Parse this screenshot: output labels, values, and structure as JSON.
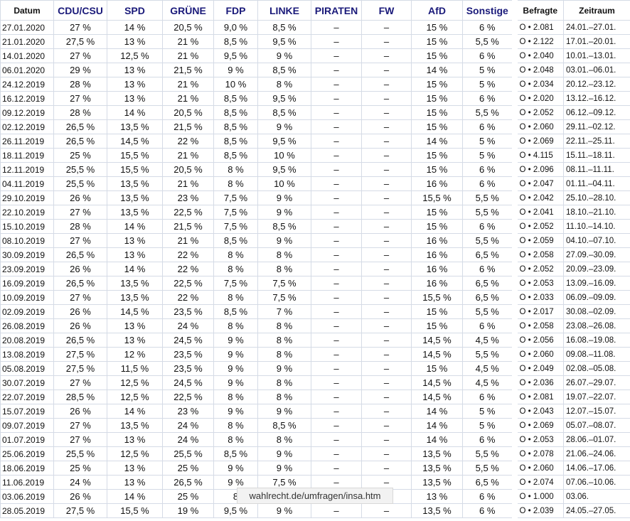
{
  "table": {
    "headers": [
      "Datum",
      "CDU/CSU",
      "SPD",
      "GRÜNE",
      "FDP",
      "LINKE",
      "PIRATEN",
      "FW",
      "AfD",
      "Sonstige",
      "Befragte",
      "Zeitraum"
    ],
    "rows": [
      [
        "27.01.2020",
        "27 %",
        "14 %",
        "20,5 %",
        "9,0 %",
        "8,5 %",
        "–",
        "–",
        "15 %",
        "6 %",
        "O • 2.081",
        "24.01.–27.01."
      ],
      [
        "21.01.2020",
        "27,5 %",
        "13 %",
        "21 %",
        "8,5 %",
        "9,5 %",
        "–",
        "–",
        "15 %",
        "5,5 %",
        "O • 2.122",
        "17.01.–20.01."
      ],
      [
        "14.01.2020",
        "27 %",
        "12,5 %",
        "21 %",
        "9,5 %",
        "9 %",
        "–",
        "–",
        "15 %",
        "6 %",
        "O • 2.040",
        "10.01.–13.01."
      ],
      [
        "06.01.2020",
        "29 %",
        "13 %",
        "21,5 %",
        "9 %",
        "8,5 %",
        "–",
        "–",
        "14 %",
        "5 %",
        "O • 2.048",
        "03.01.–06.01."
      ],
      [
        "24.12.2019",
        "28 %",
        "13 %",
        "21 %",
        "10 %",
        "8 %",
        "–",
        "–",
        "15 %",
        "5 %",
        "O • 2.034",
        "20.12.–23.12."
      ],
      [
        "16.12.2019",
        "27 %",
        "13 %",
        "21 %",
        "8,5 %",
        "9,5 %",
        "–",
        "–",
        "15 %",
        "6 %",
        "O • 2.020",
        "13.12.–16.12."
      ],
      [
        "09.12.2019",
        "28 %",
        "14 %",
        "20,5 %",
        "8,5 %",
        "8,5 %",
        "–",
        "–",
        "15 %",
        "5,5 %",
        "O • 2.052",
        "06.12.–09.12."
      ],
      [
        "02.12.2019",
        "26,5 %",
        "13,5 %",
        "21,5 %",
        "8,5 %",
        "9 %",
        "–",
        "–",
        "15 %",
        "6 %",
        "O • 2.060",
        "29.11.–02.12."
      ],
      [
        "26.11.2019",
        "26,5 %",
        "14,5 %",
        "22 %",
        "8,5 %",
        "9,5 %",
        "–",
        "–",
        "14 %",
        "5 %",
        "O • 2.069",
        "22.11.–25.11."
      ],
      [
        "18.11.2019",
        "25 %",
        "15,5 %",
        "21 %",
        "8,5 %",
        "10 %",
        "–",
        "–",
        "15 %",
        "5 %",
        "O • 4.115",
        "15.11.–18.11."
      ],
      [
        "12.11.2019",
        "25,5 %",
        "15,5 %",
        "20,5 %",
        "8 %",
        "9,5 %",
        "–",
        "–",
        "15 %",
        "6 %",
        "O • 2.096",
        "08.11.–11.11."
      ],
      [
        "04.11.2019",
        "25,5 %",
        "13,5 %",
        "21 %",
        "8 %",
        "10 %",
        "–",
        "–",
        "16 %",
        "6 %",
        "O • 2.047",
        "01.11.–04.11."
      ],
      [
        "29.10.2019",
        "26 %",
        "13,5 %",
        "23 %",
        "7,5 %",
        "9 %",
        "–",
        "–",
        "15,5 %",
        "5,5 %",
        "O • 2.042",
        "25.10.–28.10."
      ],
      [
        "22.10.2019",
        "27 %",
        "13,5 %",
        "22,5 %",
        "7,5 %",
        "9 %",
        "–",
        "–",
        "15 %",
        "5,5 %",
        "O • 2.041",
        "18.10.–21.10."
      ],
      [
        "15.10.2019",
        "28 %",
        "14 %",
        "21,5 %",
        "7,5 %",
        "8,5 %",
        "–",
        "–",
        "15 %",
        "6 %",
        "O • 2.052",
        "11.10.–14.10."
      ],
      [
        "08.10.2019",
        "27 %",
        "13 %",
        "21 %",
        "8,5 %",
        "9 %",
        "–",
        "–",
        "16 %",
        "5,5 %",
        "O • 2.059",
        "04.10.–07.10."
      ],
      [
        "30.09.2019",
        "26,5 %",
        "13 %",
        "22 %",
        "8 %",
        "8 %",
        "–",
        "–",
        "16 %",
        "6,5 %",
        "O • 2.058",
        "27.09.–30.09."
      ],
      [
        "23.09.2019",
        "26 %",
        "14 %",
        "22 %",
        "8 %",
        "8 %",
        "–",
        "–",
        "16 %",
        "6 %",
        "O • 2.052",
        "20.09.–23.09."
      ],
      [
        "16.09.2019",
        "26,5 %",
        "13,5 %",
        "22,5 %",
        "7,5 %",
        "7,5 %",
        "–",
        "–",
        "16 %",
        "6,5 %",
        "O • 2.053",
        "13.09.–16.09."
      ],
      [
        "10.09.2019",
        "27 %",
        "13,5 %",
        "22 %",
        "8 %",
        "7,5 %",
        "–",
        "–",
        "15,5 %",
        "6,5 %",
        "O • 2.033",
        "06.09.–09.09."
      ],
      [
        "02.09.2019",
        "26 %",
        "14,5 %",
        "23,5 %",
        "8,5 %",
        "7 %",
        "–",
        "–",
        "15 %",
        "5,5 %",
        "O • 2.017",
        "30.08.–02.09."
      ],
      [
        "26.08.2019",
        "26 %",
        "13 %",
        "24 %",
        "8 %",
        "8 %",
        "–",
        "–",
        "15 %",
        "6 %",
        "O • 2.058",
        "23.08.–26.08."
      ],
      [
        "20.08.2019",
        "26,5 %",
        "13 %",
        "24,5 %",
        "9 %",
        "8 %",
        "–",
        "–",
        "14,5 %",
        "4,5 %",
        "O • 2.056",
        "16.08.–19.08."
      ],
      [
        "13.08.2019",
        "27,5 %",
        "12 %",
        "23,5 %",
        "9 %",
        "8 %",
        "–",
        "–",
        "14,5 %",
        "5,5 %",
        "O • 2.060",
        "09.08.–11.08."
      ],
      [
        "05.08.2019",
        "27,5 %",
        "11,5 %",
        "23,5 %",
        "9 %",
        "9 %",
        "–",
        "–",
        "15 %",
        "4,5 %",
        "O • 2.049",
        "02.08.–05.08."
      ],
      [
        "30.07.2019",
        "27 %",
        "12,5 %",
        "24,5 %",
        "9 %",
        "8 %",
        "–",
        "–",
        "14,5 %",
        "4,5 %",
        "O • 2.036",
        "26.07.–29.07."
      ],
      [
        "22.07.2019",
        "28,5 %",
        "12,5 %",
        "22,5 %",
        "8 %",
        "8 %",
        "–",
        "–",
        "14,5 %",
        "6 %",
        "O • 2.081",
        "19.07.–22.07."
      ],
      [
        "15.07.2019",
        "26 %",
        "14 %",
        "23 %",
        "9 %",
        "9 %",
        "–",
        "–",
        "14 %",
        "5 %",
        "O • 2.043",
        "12.07.–15.07."
      ],
      [
        "09.07.2019",
        "27 %",
        "13,5 %",
        "24 %",
        "8 %",
        "8,5 %",
        "–",
        "–",
        "14 %",
        "5 %",
        "O • 2.069",
        "05.07.–08.07."
      ],
      [
        "01.07.2019",
        "27 %",
        "13 %",
        "24 %",
        "8 %",
        "8 %",
        "–",
        "–",
        "14 %",
        "6 %",
        "O • 2.053",
        "28.06.–01.07."
      ],
      [
        "25.06.2019",
        "25,5 %",
        "12,5 %",
        "25,5 %",
        "8,5 %",
        "9 %",
        "–",
        "–",
        "13,5 %",
        "5,5 %",
        "O • 2.078",
        "21.06.–24.06."
      ],
      [
        "18.06.2019",
        "25 %",
        "13 %",
        "25 %",
        "9 %",
        "9 %",
        "–",
        "–",
        "13,5 %",
        "5,5 %",
        "O • 2.060",
        "14.06.–17.06."
      ],
      [
        "11.06.2019",
        "24 %",
        "13 %",
        "26,5 %",
        "9 %",
        "7,5 %",
        "–",
        "–",
        "13,5 %",
        "6,5 %",
        "O • 2.074",
        "07.06.–10.06."
      ],
      [
        "03.06.2019",
        "26 %",
        "14 %",
        "25 %",
        "8",
        null,
        null,
        null,
        "13 %",
        "6 %",
        "O • 1.000",
        "03.06."
      ],
      [
        "28.05.2019",
        "27,5 %",
        "15,5 %",
        "19 %",
        "9,5 %",
        "9 %",
        "–",
        "–",
        "13,5 %",
        "6 %",
        "O • 2.039",
        "24.05.–27.05."
      ]
    ]
  },
  "tooltip": "wahlrecht.de/umfragen/insa.htm"
}
